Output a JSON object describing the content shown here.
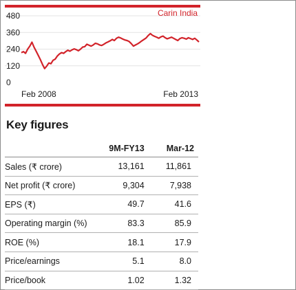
{
  "chart_data": {
    "type": "line",
    "title": "Carin India",
    "x_start_label": "Feb 2008",
    "x_end_label": "Feb 2013",
    "ylim": [
      0,
      480
    ],
    "yticks": [
      "480",
      "360",
      "240",
      "120",
      "0"
    ],
    "grid": true,
    "series": [
      {
        "values": [
          215,
          222,
          210,
          240,
          262,
          290,
          255,
          225,
          195,
          165,
          130,
          100,
          118,
          140,
          135,
          160,
          168,
          190,
          205,
          215,
          210,
          222,
          232,
          225,
          235,
          242,
          236,
          228,
          240,
          255,
          258,
          275,
          268,
          262,
          270,
          282,
          278,
          270,
          266,
          275,
          285,
          292,
          300,
          310,
          302,
          318,
          326,
          320,
          312,
          306,
          302,
          295,
          280,
          262,
          270,
          278,
          288,
          300,
          310,
          320,
          338,
          352,
          340,
          332,
          326,
          318,
          328,
          334,
          322,
          314,
          320,
          326,
          318,
          310,
          302,
          316,
          322,
          318,
          312,
          322,
          316,
          310,
          318,
          306,
          292
        ]
      }
    ],
    "colors": {
      "line": "#d2232a",
      "accent": "#d2232a",
      "grid": "#e3e3e3"
    }
  },
  "key_figures": {
    "heading": "Key figures",
    "columns": [
      "",
      "9M-FY13",
      "Mar-12"
    ],
    "rows": [
      [
        "Sales (₹ crore)",
        "13,161",
        "11,861"
      ],
      [
        "Net profit (₹ crore)",
        "9,304",
        "7,938"
      ],
      [
        "EPS (₹)",
        "49.7",
        "41.6"
      ],
      [
        "Operating margin (%)",
        "83.3",
        "85.9"
      ],
      [
        "ROE (%)",
        "18.1",
        "17.9"
      ],
      [
        "Price/earnings",
        "5.1",
        "8.0"
      ],
      [
        "Price/book",
        "1.02",
        "1.32"
      ]
    ]
  }
}
